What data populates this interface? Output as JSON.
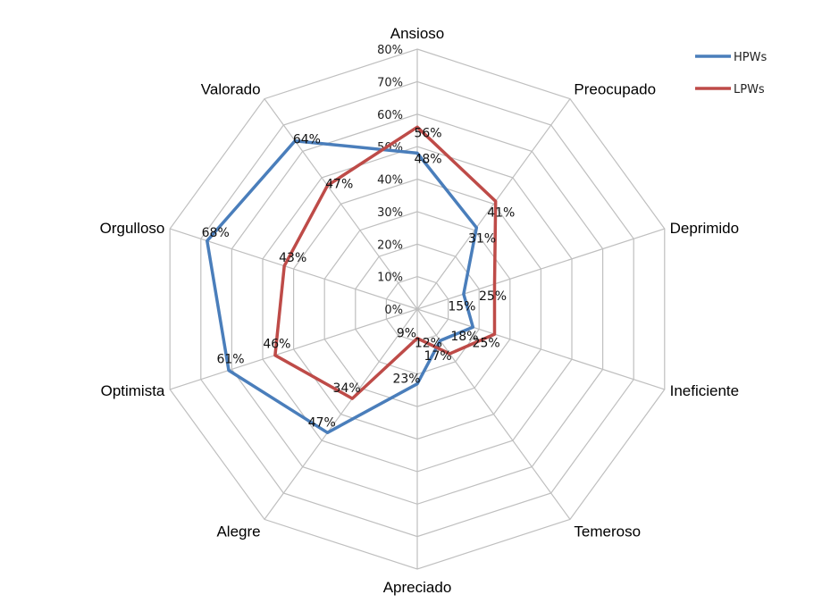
{
  "chart_data": {
    "type": "radar",
    "categories": [
      "Ansioso",
      "Preocupado",
      "Deprimido",
      "Ineficiente",
      "Temeroso",
      "Apreciado",
      "Alegre",
      "Optimista",
      "Orgulloso",
      "Valorado"
    ],
    "series": [
      {
        "name": "HPWs",
        "color": "#4a7ebb",
        "values": [
          48,
          31,
          15,
          18,
          12,
          23,
          47,
          61,
          68,
          64
        ]
      },
      {
        "name": "LPWs",
        "color": "#be4b48",
        "values": [
          56,
          41,
          25,
          25,
          17,
          9,
          34,
          46,
          43,
          47
        ]
      }
    ],
    "data_labels": [
      {
        "series": "HPWs",
        "category": "Ansioso",
        "text": "48%"
      },
      {
        "series": "HPWs",
        "category": "Preocupado",
        "text": "31%"
      },
      {
        "series": "HPWs",
        "category": "Deprimido",
        "text": "15%"
      },
      {
        "series": "HPWs",
        "category": "Ineficiente",
        "text": "18%"
      },
      {
        "series": "HPWs",
        "category": "Temeroso",
        "text": "12%"
      },
      {
        "series": "HPWs",
        "category": "Apreciado",
        "text": "23%"
      },
      {
        "series": "HPWs",
        "category": "Alegre",
        "text": "47%"
      },
      {
        "series": "HPWs",
        "category": "Optimista",
        "text": "61%"
      },
      {
        "series": "HPWs",
        "category": "Orgulloso",
        "text": "68%"
      },
      {
        "series": "HPWs",
        "category": "Valorado",
        "text": "64%"
      },
      {
        "series": "LPWs",
        "category": "Ansioso",
        "text": "56%"
      },
      {
        "series": "LPWs",
        "category": "Preocupado",
        "text": "41%"
      },
      {
        "series": "LPWs",
        "category": "Deprimido",
        "text": "25%"
      },
      {
        "series": "LPWs",
        "category": "Ineficiente",
        "text": "25%"
      },
      {
        "series": "LPWs",
        "category": "Temeroso",
        "text": "17%"
      },
      {
        "series": "LPWs",
        "category": "Apreciado",
        "text": "9%"
      },
      {
        "series": "LPWs",
        "category": "Alegre",
        "text": "34%"
      },
      {
        "series": "LPWs",
        "category": "Optimista",
        "text": "46%"
      },
      {
        "series": "LPWs",
        "category": "Orgulloso",
        "text": "43%"
      },
      {
        "series": "LPWs",
        "category": "Valorado",
        "text": "47%"
      }
    ],
    "ticks": [
      "0%",
      "10%",
      "20%",
      "30%",
      "40%",
      "50%",
      "60%",
      "70%",
      "80%"
    ],
    "range": [
      0,
      80
    ],
    "grid": true,
    "grid_color": "#bfbfbf",
    "legend_position": "top-right"
  }
}
